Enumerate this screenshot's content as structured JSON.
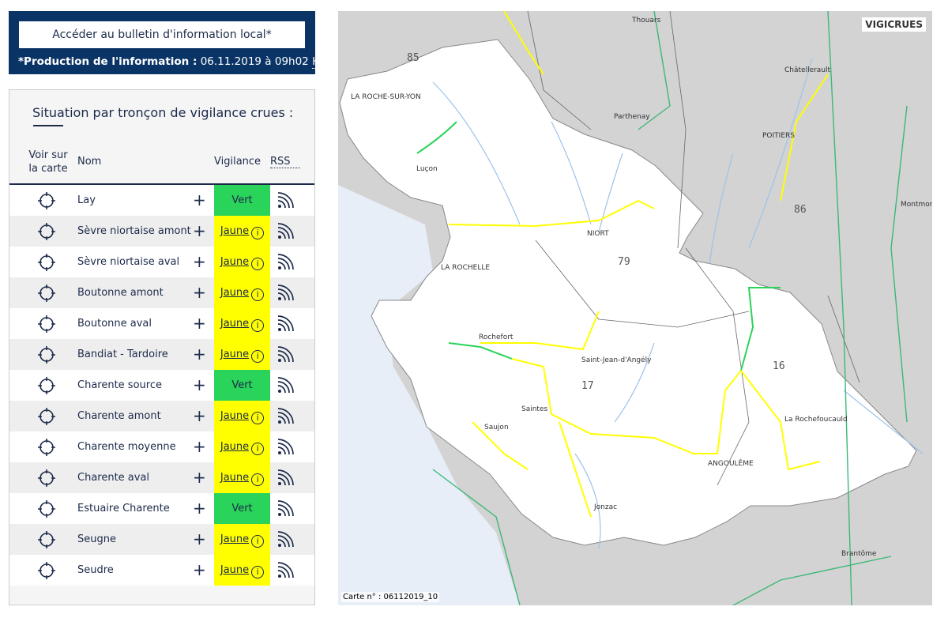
{
  "header": {
    "bulletin_button": "Accéder au bulletin d'information local*",
    "production_label": "*Production de l'information :",
    "production_value": "06.11.2019 à 09h02",
    "production_tz": "HL"
  },
  "table": {
    "title": "Situation par tronçon de vigilance crues :",
    "col_map": "Voir sur la carte",
    "col_name": "Nom",
    "col_vigilance": "Vigilance",
    "col_rss": "RSS",
    "rows": [
      {
        "name": "Lay",
        "vigilance": "Vert"
      },
      {
        "name": "Sèvre niortaise amont",
        "vigilance": "Jaune"
      },
      {
        "name": "Sèvre niortaise aval",
        "vigilance": "Jaune"
      },
      {
        "name": "Boutonne amont",
        "vigilance": "Jaune"
      },
      {
        "name": "Boutonne aval",
        "vigilance": "Jaune"
      },
      {
        "name": "Bandiat - Tardoire",
        "vigilance": "Jaune"
      },
      {
        "name": "Charente source",
        "vigilance": "Vert"
      },
      {
        "name": "Charente amont",
        "vigilance": "Jaune"
      },
      {
        "name": "Charente moyenne",
        "vigilance": "Jaune"
      },
      {
        "name": "Charente aval",
        "vigilance": "Jaune"
      },
      {
        "name": "Estuaire Charente",
        "vigilance": "Vert"
      },
      {
        "name": "Seugne",
        "vigilance": "Jaune"
      },
      {
        "name": "Seudre",
        "vigilance": "Jaune"
      }
    ]
  },
  "colors": {
    "vert": "#2ad35a",
    "jaune": "#ffff00",
    "navy": "#0b3466"
  },
  "map": {
    "logo": "VIGICRUES",
    "carte_label": "Carte n° : 06112019_10",
    "labels": [
      "Thouars",
      "LA ROCHE-SUR-YON",
      "Châtellerault",
      "Parthenay",
      "POITIERS",
      "Luçon",
      "Montmor",
      "NIORT",
      "LA ROCHELLE",
      "Rochefort",
      "Saint-Jean-d'Angély",
      "Saintes",
      "La Rochefoucauld",
      "Saujon",
      "ANGOULÊME",
      "Jonzac",
      "Brantôme"
    ],
    "departments": [
      "85",
      "86",
      "79",
      "16",
      "17"
    ]
  }
}
